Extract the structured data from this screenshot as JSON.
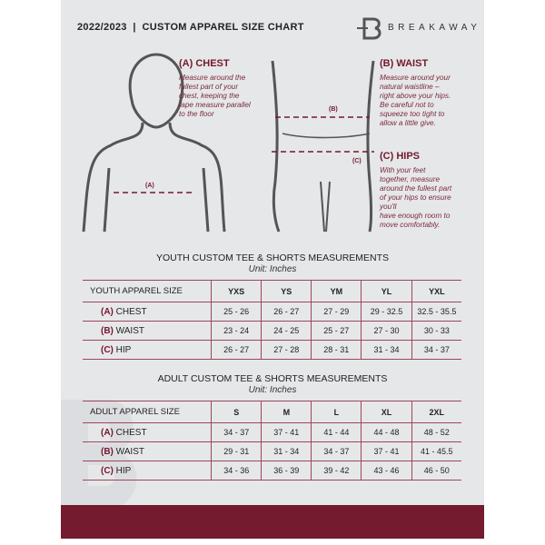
{
  "header": {
    "title": "2022/2023  |  CUSTOM APPAREL SIZE CHART",
    "brand": "BREAKAWAY",
    "logo_letter": "B"
  },
  "guide": {
    "chest": {
      "heading": "(A) CHEST",
      "lines": [
        "Measure around the",
        "fullest part of your",
        "chest, keeping the",
        "tape measure parallel",
        "to the floor"
      ],
      "marker": "(A)"
    },
    "waist": {
      "heading": "(B) WAIST",
      "lines": [
        "Measure around your",
        "natural waistline –",
        "right above your hips.",
        "Be careful not to",
        "squeeze too tight to",
        "allow a little give."
      ],
      "marker": "(B)"
    },
    "hips": {
      "heading": "(C) HIPS",
      "lines": [
        "With your feet",
        "together, measure",
        "around the fullest part",
        "of your hips to ensure",
        "you'll",
        "have enough room to",
        "move comfortably."
      ],
      "marker": "(C)"
    }
  },
  "youth": {
    "title": "YOUTH CUSTOM TEE & SHORTS MEASUREMENTS",
    "unit": "Unit: Inches",
    "header": [
      "YOUTH APPAREL SIZE",
      "YXS",
      "YS",
      "YM",
      "YL",
      "YXL"
    ],
    "rows": [
      {
        "code": "(A)",
        "name": "CHEST",
        "values": [
          "25 - 26",
          "26 - 27",
          "27 - 29",
          "29 - 32.5",
          "32.5 - 35.5"
        ]
      },
      {
        "code": "(B)",
        "name": "WAIST",
        "values": [
          "23 - 24",
          "24 - 25",
          "25 - 27",
          "27 - 30",
          "30 - 33"
        ]
      },
      {
        "code": "(C)",
        "name": "HIP",
        "values": [
          "26 - 27",
          "27 - 28",
          "28 - 31",
          "31 - 34",
          "34 - 37"
        ]
      }
    ]
  },
  "adult": {
    "title": "ADULT CUSTOM TEE & SHORTS MEASUREMENTS",
    "unit": "Unit: Inches",
    "header": [
      "ADULT APPAREL SIZE",
      "S",
      "M",
      "L",
      "XL",
      "2XL"
    ],
    "rows": [
      {
        "code": "(A)",
        "name": "CHEST",
        "values": [
          "34 - 37",
          "37 - 41",
          "41 - 44",
          "44 - 48",
          "48 - 52"
        ]
      },
      {
        "code": "(B)",
        "name": "WAIST",
        "values": [
          "29 - 31",
          "31 - 34",
          "34 - 37",
          "37 - 41",
          "41 - 45.5"
        ]
      },
      {
        "code": "(C)",
        "name": "HIP",
        "values": [
          "34 - 36",
          "36 - 39",
          "39 - 42",
          "43 - 46",
          "46 - 50"
        ]
      }
    ]
  },
  "colors": {
    "accent": "#741b30",
    "background": "#e6e7e9"
  }
}
